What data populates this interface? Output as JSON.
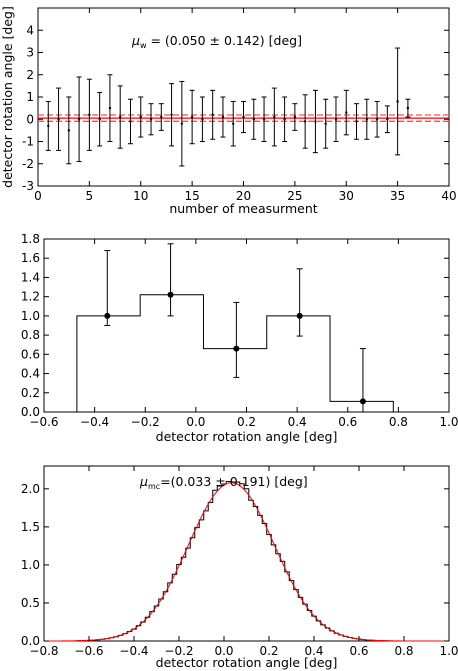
{
  "chart_data": [
    {
      "type": "scatter",
      "xlabel": "number of measurment",
      "ylabel": "detector rotation angle [deg]",
      "xlim": [
        0,
        40
      ],
      "ylim": [
        -3,
        5
      ],
      "xticks": [
        "0",
        "5",
        "10",
        "15",
        "20",
        "25",
        "30",
        "35",
        "40"
      ],
      "yticks": [
        "-3",
        "-2",
        "-1",
        "0",
        "1",
        "2",
        "3",
        "4"
      ],
      "annotation_mu": "μ",
      "annotation_sub": "w",
      "annotation_value": " = (0.050 ± 0.142) [deg]",
      "points": [
        {
          "x": 1,
          "y": -0.3,
          "err": 1.1
        },
        {
          "x": 2,
          "y": 0.0,
          "err": 1.4
        },
        {
          "x": 3,
          "y": -0.5,
          "err": 1.5
        },
        {
          "x": 4,
          "y": 0.0,
          "err": 1.9
        },
        {
          "x": 5,
          "y": 0.2,
          "err": 1.6
        },
        {
          "x": 6,
          "y": 0.0,
          "err": 1.2
        },
        {
          "x": 7,
          "y": 0.5,
          "err": 1.5
        },
        {
          "x": 8,
          "y": 0.1,
          "err": 1.4
        },
        {
          "x": 9,
          "y": -0.1,
          "err": 1.0
        },
        {
          "x": 10,
          "y": 0.1,
          "err": 0.9
        },
        {
          "x": 11,
          "y": 0.0,
          "err": 0.7
        },
        {
          "x": 12,
          "y": 0.1,
          "err": 0.6
        },
        {
          "x": 13,
          "y": 0.2,
          "err": 1.4
        },
        {
          "x": 14,
          "y": -0.2,
          "err": 1.9
        },
        {
          "x": 15,
          "y": 0.1,
          "err": 1.2
        },
        {
          "x": 16,
          "y": 0.0,
          "err": 1.0
        },
        {
          "x": 17,
          "y": 0.2,
          "err": 1.1
        },
        {
          "x": 18,
          "y": 0.1,
          "err": 0.9
        },
        {
          "x": 19,
          "y": -0.2,
          "err": 1.0
        },
        {
          "x": 20,
          "y": 0.1,
          "err": 0.7
        },
        {
          "x": 21,
          "y": 0.0,
          "err": 0.9
        },
        {
          "x": 22,
          "y": 0.0,
          "err": 1.0
        },
        {
          "x": 23,
          "y": 0.1,
          "err": 1.3
        },
        {
          "x": 24,
          "y": 0.0,
          "err": 1.0
        },
        {
          "x": 25,
          "y": 0.1,
          "err": 0.6
        },
        {
          "x": 26,
          "y": -0.1,
          "err": 1.2
        },
        {
          "x": 27,
          "y": -0.1,
          "err": 1.4
        },
        {
          "x": 28,
          "y": -0.2,
          "err": 1.1
        },
        {
          "x": 29,
          "y": 0.0,
          "err": 1.0
        },
        {
          "x": 30,
          "y": 0.3,
          "err": 1.0
        },
        {
          "x": 31,
          "y": -0.1,
          "err": 0.8
        },
        {
          "x": 32,
          "y": 0.0,
          "err": 0.9
        },
        {
          "x": 33,
          "y": 0.0,
          "err": 0.8
        },
        {
          "x": 34,
          "y": 0.0,
          "err": 0.6
        },
        {
          "x": 35,
          "y": 0.8,
          "err": 2.4
        },
        {
          "x": 36,
          "y": 0.5,
          "err": 0.4
        }
      ],
      "mean": 0.05,
      "mean_err": 0.142,
      "colors": {
        "points": "#000000",
        "mean_line": "#ff0000",
        "band": "#ff4d4d"
      }
    },
    {
      "type": "bar",
      "xlabel": "detector rotation angle [deg]",
      "ylabel": "",
      "xlim": [
        -0.6,
        1.0
      ],
      "ylim": [
        0,
        1.8
      ],
      "xticks": [
        "−0.6",
        "−0.4",
        "−0.2",
        "0.0",
        "0.2",
        "0.4",
        "0.6",
        "0.8",
        "1.0"
      ],
      "yticks": [
        "0.0",
        "0.2",
        "0.4",
        "0.6",
        "0.8",
        "1.0",
        "1.2",
        "1.4",
        "1.6",
        "1.8"
      ],
      "bin_edges": [
        -0.47,
        -0.22,
        0.03,
        0.28,
        0.53,
        0.78
      ],
      "values": [
        1.0,
        1.22,
        0.66,
        1.0,
        0.11
      ],
      "points": [
        {
          "x": -0.35,
          "y": 1.0,
          "lo": 0.9,
          "hi": 1.68
        },
        {
          "x": -0.1,
          "y": 1.22,
          "lo": 1.0,
          "hi": 1.75
        },
        {
          "x": 0.16,
          "y": 0.66,
          "lo": 0.36,
          "hi": 1.14
        },
        {
          "x": 0.41,
          "y": 1.0,
          "lo": 0.79,
          "hi": 1.49
        },
        {
          "x": 0.66,
          "y": 0.11,
          "lo": 0.0,
          "hi": 0.66
        }
      ],
      "colors": {
        "hist": "#000000",
        "points": "#000000"
      }
    },
    {
      "type": "bar",
      "xlabel": "detector rotation angle [deg]",
      "ylabel": "",
      "xlim": [
        -0.8,
        1.0
      ],
      "ylim": [
        0,
        2.3
      ],
      "xticks": [
        "−0.8",
        "−0.6",
        "−0.4",
        "−0.2",
        "0.0",
        "0.2",
        "0.4",
        "0.6",
        "0.8",
        "1.0"
      ],
      "yticks": [
        "0.0",
        "0.5",
        "1.0",
        "1.5",
        "2.0"
      ],
      "annotation_mu": "μ",
      "annotation_sub": "mc",
      "annotation_value": "=(0.033 ± 0.191) [deg]",
      "mean": 0.033,
      "sigma": 0.191,
      "peak": 2.08,
      "hist_range": [
        -0.65,
        0.75
      ],
      "bin_width": 0.02,
      "colors": {
        "hist": "#000000",
        "fit": "#ff0000"
      }
    }
  ]
}
